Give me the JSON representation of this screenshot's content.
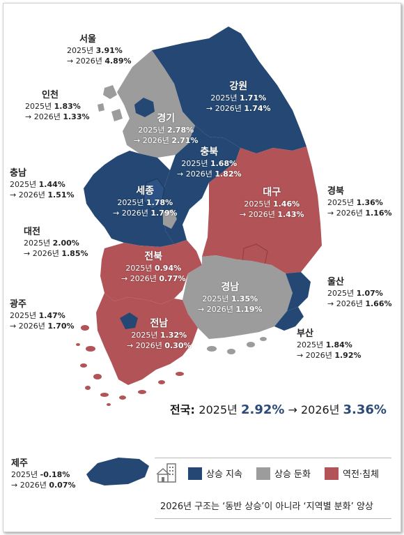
{
  "colors": {
    "rise": "#244873",
    "slow": "#9c9c9c",
    "reverse": "#b25457"
  },
  "regions": {
    "seoul": {
      "name": "서울",
      "y2025_label": "2025년 ",
      "y2025": "3.91%",
      "y2026_label": "→ 2026년 ",
      "y2026": "4.89%"
    },
    "incheon": {
      "name": "인천",
      "y2025_label": "2025년 ",
      "y2025": "1.83%",
      "y2026_label": "→ 2026년 ",
      "y2026": "1.33%"
    },
    "chungnam": {
      "name": "충남",
      "y2025_label": "2025년 ",
      "y2025": "1.44%",
      "y2026_label": "→ 2026년 ",
      "y2026": "1.51%"
    },
    "daejeon": {
      "name": "대전",
      "y2025_label": "2025년 ",
      "y2025": "2.00%",
      "y2026_label": "→ 2026년 ",
      "y2026": "1.85%"
    },
    "gwangju": {
      "name": "광주",
      "y2025_label": "2025년 ",
      "y2025": "1.47%",
      "y2026_label": "→ 2026년 ",
      "y2026": "1.70%"
    },
    "jeju": {
      "name": "제주",
      "y2025_label": "2025년 ",
      "y2025": "-0.18%",
      "y2026_label": "→ 2026년 ",
      "y2026": "0.07%"
    },
    "gyeongbuk": {
      "name": "경북",
      "y2025_label": "2025년 ",
      "y2025": "1.36%",
      "y2026_label": "→ 2026년 ",
      "y2026": "1.16%"
    },
    "ulsan": {
      "name": "울산",
      "y2025_label": "2025년 ",
      "y2025": "1.07%",
      "y2026_label": "→ 2026년 ",
      "y2026": "1.66%"
    },
    "busan": {
      "name": "부산",
      "y2025_label": "2025년 ",
      "y2025": "1.84%",
      "y2026_label": "→ 2026년 ",
      "y2026": "1.92%"
    },
    "gangwon": {
      "name": "강원",
      "y2025_label": "2025년 ",
      "y2025": "1.71%",
      "y2026_label": "→ 2026년 ",
      "y2026": "1.74%"
    },
    "gyeonggi": {
      "name": "경기",
      "y2025_label": "2025년 ",
      "y2025": "2.78%",
      "y2026_label": "→ 2026년 ",
      "y2026": "2.71%"
    },
    "chungbuk": {
      "name": "충북",
      "y2025_label": "2025년 ",
      "y2025": "1.68%",
      "y2026_label": "→ 2026년 ",
      "y2026": "1.82%"
    },
    "sejong": {
      "name": "세종",
      "y2025_label": "2025년 ",
      "y2025": "1.78%",
      "y2026_label": "→ 2026년 ",
      "y2026": "1.79%"
    },
    "daegu": {
      "name": "대구",
      "y2025_label": "2025년 ",
      "y2025": "1.46%",
      "y2026_label": "→ 2026년 ",
      "y2026": "1.43%"
    },
    "jeonbuk": {
      "name": "전북",
      "y2025_label": "2025년 ",
      "y2025": "0.94%",
      "y2026_label": "→ 2026년 ",
      "y2026": "0.77%"
    },
    "gyeongnam": {
      "name": "경남",
      "y2025_label": "2025년 ",
      "y2025": "1.35%",
      "y2026_label": "→ 2026년 ",
      "y2026": "1.19%"
    },
    "jeonnam": {
      "name": "전남",
      "y2025_label": "2025년 ",
      "y2025": "1.32%",
      "y2026_label": "→ 2026년 ",
      "y2026": "0.30%"
    }
  },
  "national": {
    "label": "전국: ",
    "y2025_label": "2025년 ",
    "y2025": "2.92%",
    "arrow": " → ",
    "y2026_label": "2026년 ",
    "y2026": "3.36%"
  },
  "legend": {
    "icon": "house-building-icon",
    "rise": "상승 지속",
    "slow": "상승 둔화",
    "reverse": "역전·침체"
  },
  "footnote": "2026년 구조는 ‘동반 상승’이 아니라 ‘지역별 분화’ 양상"
}
